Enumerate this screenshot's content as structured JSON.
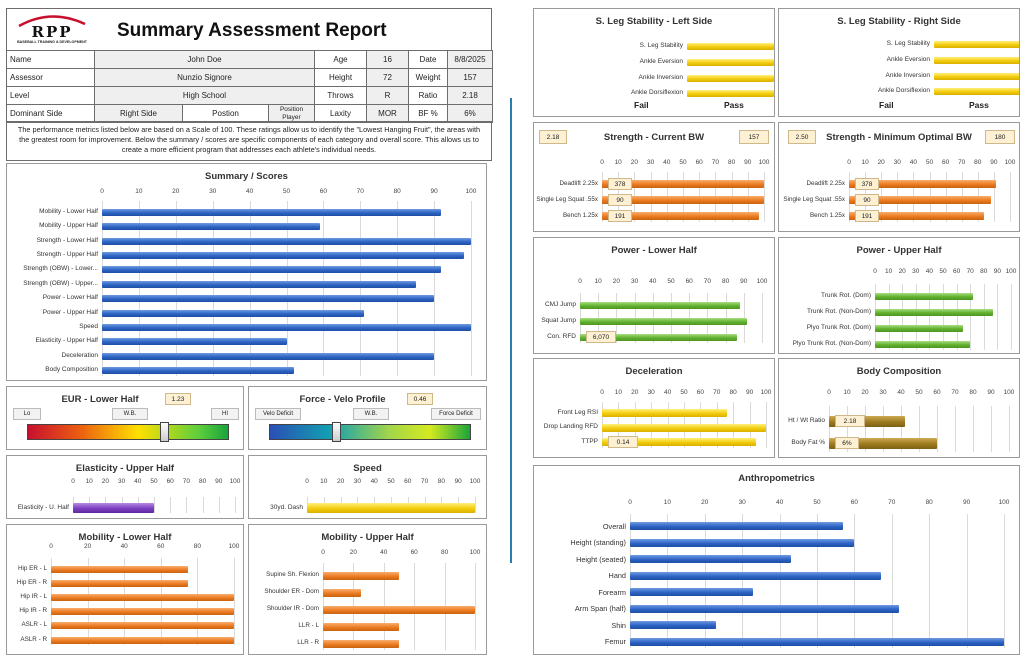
{
  "report": {
    "logo_text": "RPP",
    "logo_sub": "BASEBALL TRAINING & DEVELOPMENT",
    "title": "Summary Assessment Report"
  },
  "info": {
    "name_label": "Name",
    "name": "John Doe",
    "age_label": "Age",
    "age": "16",
    "date_label": "Date",
    "date": "8/8/2025",
    "assessor_label": "Assessor",
    "assessor": "Nunzio Signore",
    "height_label": "Height",
    "height": "72",
    "weight_label": "Weight",
    "weight": "157",
    "level_label": "Level",
    "level": "High School",
    "throws_label": "Throws",
    "throws": "R",
    "ratio_label": "Ratio",
    "ratio": "2.18",
    "dominant_label": "Dominant Side",
    "dominant": "Right Side",
    "position_label": "Postion",
    "position": "Position Player",
    "laxity_label": "Laxity",
    "laxity": "MOR",
    "bf_label": "BF %",
    "bf": "6%"
  },
  "note": "The performance metrics listed below are based on a Scale of 100. These ratings allow us to identify the \"Lowest Hanging Fruit\", the areas with the greatest room for improvement. Below the summary / scores are specific components of each category and overall score. This allows us to create a more efficient program that addresses each athlete's individual needs.",
  "colors": {
    "blue": "#2d63c4",
    "orange": "#ec7b21",
    "green": "#62b12f",
    "yellow": "#f3cc0c",
    "purple": "#7a3fc0",
    "olive": "#9c7b1e"
  },
  "eur": {
    "title": "EUR - Lower Half",
    "value": "1.23",
    "lo": "Lo",
    "mid": "W.B.",
    "hi": "HI",
    "level": 0.68
  },
  "fvp": {
    "title": "Force - Velo Profile",
    "value": "0.46",
    "lo": "Velo Deficit",
    "mid": "W.B.",
    "hi": "Force Deficit",
    "level": 0.33
  },
  "stab_left": {
    "title": "S. Leg Stability - Left Side",
    "items": [
      "S. Leg Stability",
      "Ankle Eversion",
      "Ankle Inversion",
      "Ankle Dorsiflexion"
    ],
    "fail": "Fail",
    "pass": "Pass"
  },
  "stab_right": {
    "title": "S. Leg Stability - Right Side",
    "items": [
      "S. Leg Stability",
      "Ankle Eversion",
      "Ankle Inversion",
      "Ankle Dorsiflexion"
    ],
    "fail": "Fail",
    "pass": "Pass"
  },
  "str_cur": {
    "title": "Strength - Current BW",
    "left": "2.18",
    "right": "157",
    "labels": [
      "378",
      "90",
      "191"
    ]
  },
  "str_min": {
    "title": "Strength - Minimum Optimal BW",
    "left": "2.50",
    "right": "180",
    "labels": [
      "378",
      "90",
      "191"
    ]
  },
  "cond": {
    "label": "6,070"
  },
  "decel": {
    "label": "0.14"
  },
  "body": {
    "labels": [
      "2.18",
      "6%"
    ]
  },
  "chart_data": [
    {
      "id": "summary",
      "type": "bar",
      "title": "Summary / Scores",
      "color": "blue",
      "xlim": [
        0,
        100
      ],
      "step": 10,
      "categories": [
        "Mobility - Lower Half",
        "Mobility - Upper Half",
        "Strength - Lower Half",
        "Strength - Upper Half",
        "Strength (OBW) - Lower...",
        "Strength (OBW) - Upper...",
        "Power - Lower Half",
        "Power - Upper Half",
        "Speed",
        "Elasticity - Upper Half",
        "Deceleration",
        "Body Composition"
      ],
      "values": [
        92,
        59,
        100,
        98,
        92,
        85,
        90,
        71,
        100,
        50,
        90,
        52
      ]
    },
    {
      "id": "elasticity",
      "type": "bar",
      "title": "Elasticity - Upper Half",
      "color": "purple",
      "xlim": [
        0,
        100
      ],
      "step": 10,
      "categories": [
        "Elasticity - U. Half"
      ],
      "values": [
        50
      ]
    },
    {
      "id": "speed",
      "type": "bar",
      "title": "Speed",
      "color": "yellow",
      "xlim": [
        0,
        100
      ],
      "step": 10,
      "categories": [
        "30yd. Dash"
      ],
      "values": [
        100
      ]
    },
    {
      "id": "mob_lower",
      "type": "bar",
      "title": "Mobility - Lower Half",
      "color": "orange",
      "xlim": [
        0,
        100
      ],
      "step": 20,
      "categories": [
        "Hip ER - L",
        "Hip ER - R",
        "Hip IR - L",
        "Hip IR - R",
        "ASLR - L",
        "ASLR - R"
      ],
      "values": [
        75,
        75,
        100,
        100,
        100,
        100
      ]
    },
    {
      "id": "mob_upper",
      "type": "bar",
      "title": "Mobility - Upper Half",
      "color": "orange",
      "xlim": [
        0,
        100
      ],
      "step": 20,
      "categories": [
        "Supine Sh. Flexion",
        "Shoulder ER - Dom",
        "Shoulder IR - Dom",
        "LLR - L",
        "LLR - R"
      ],
      "values": [
        50,
        25,
        100,
        50,
        50
      ]
    },
    {
      "id": "stab_l",
      "type": "bar",
      "color": "yellow",
      "xlim": [
        0,
        100
      ],
      "categories": [
        "S. Leg Stability",
        "Ankle Eversion",
        "Ankle Inversion",
        "Ankle Dorsiflexion"
      ],
      "values": [
        100,
        100,
        100,
        100
      ]
    },
    {
      "id": "stab_r",
      "type": "bar",
      "color": "yellow",
      "xlim": [
        0,
        100
      ],
      "categories": [
        "S. Leg Stability",
        "Ankle Eversion",
        "Ankle Inversion",
        "Ankle Dorsiflexion"
      ],
      "values": [
        100,
        100,
        100,
        100
      ]
    },
    {
      "id": "str_cur",
      "type": "bar",
      "title": "Strength - Current BW",
      "color": "orange",
      "xlim": [
        0,
        100
      ],
      "step": 10,
      "categories": [
        "Deadlift 2.25x",
        "Single Leg Squat .55x",
        "Bench 1.25x"
      ],
      "values": [
        100,
        100,
        97
      ]
    },
    {
      "id": "str_min",
      "type": "bar",
      "title": "Strength - Minimum Optimal BW",
      "color": "orange",
      "xlim": [
        0,
        100
      ],
      "step": 10,
      "categories": [
        "Deadlift 2.25x",
        "Single Leg Squat .55x",
        "Bench 1.25x"
      ],
      "values": [
        91,
        88,
        84
      ]
    },
    {
      "id": "pow_lower",
      "type": "bar",
      "title": "Power - Lower Half",
      "color": "green",
      "xlim": [
        0,
        100
      ],
      "step": 10,
      "categories": [
        "CMJ Jump",
        "Squat Jump",
        "Con. RFD"
      ],
      "values": [
        88,
        92,
        86
      ]
    },
    {
      "id": "pow_upper",
      "type": "bar",
      "title": "Power - Upper Half",
      "color": "green",
      "xlim": [
        0,
        100
      ],
      "step": 10,
      "categories": [
        "Trunk Rot. (Dom)",
        "Trunk Rot. (Non-Dom)",
        "Plyo Trunk Rot. (Dom)",
        "Plyo Trunk Rot. (Non-Dom)"
      ],
      "values": [
        72,
        87,
        65,
        70
      ]
    },
    {
      "id": "decel",
      "type": "bar",
      "title": "Deceleration",
      "color": "yellow",
      "xlim": [
        0,
        100
      ],
      "step": 10,
      "categories": [
        "Front Leg RSI",
        "Drop Landing RFD",
        "TTPP"
      ],
      "values": [
        76,
        100,
        94
      ]
    },
    {
      "id": "body",
      "type": "bar",
      "title": "Body Composition",
      "color": "olive",
      "xlim": [
        0,
        100
      ],
      "step": 10,
      "categories": [
        "Ht / Wt Ratio",
        "Body Fat %"
      ],
      "values": [
        42,
        60
      ]
    },
    {
      "id": "anthro",
      "type": "bar",
      "title": "Anthropometrics",
      "color": "blue",
      "xlim": [
        0,
        100
      ],
      "step": 10,
      "categories": [
        "Overall",
        "Height (standing)",
        "Height (seated)",
        "Hand",
        "Forearm",
        "Arm Span (half)",
        "Shin",
        "Femur"
      ],
      "values": [
        57,
        60,
        43,
        67,
        33,
        72,
        23,
        100
      ]
    }
  ]
}
